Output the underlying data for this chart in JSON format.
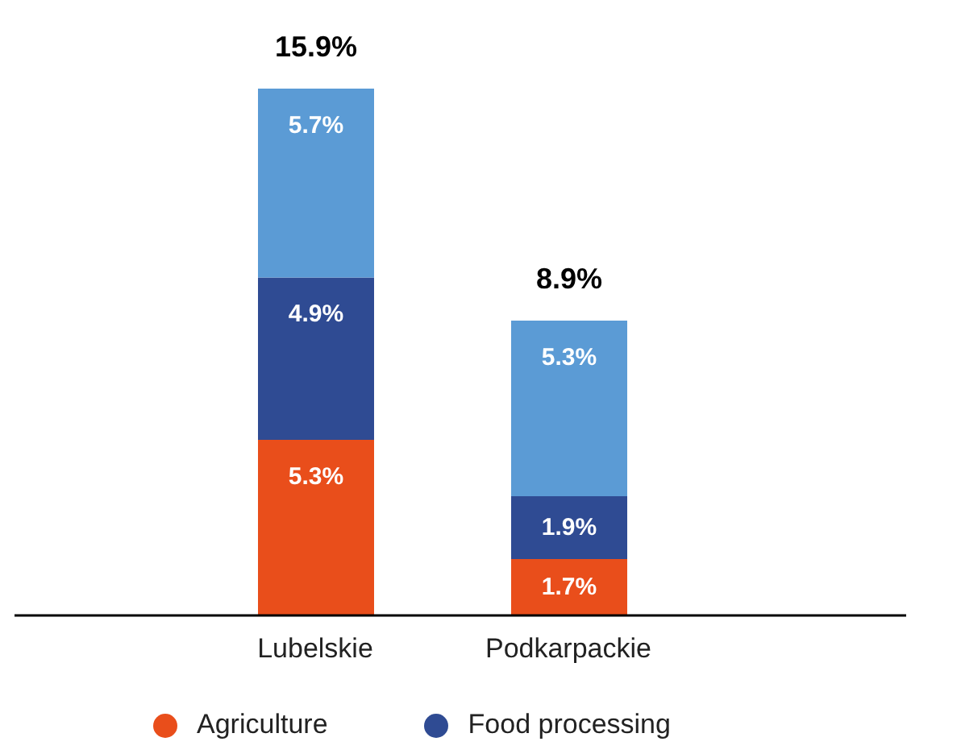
{
  "chart_data": {
    "type": "bar",
    "stacked": true,
    "categories": [
      "Lubelskie",
      "Podkarpackie"
    ],
    "series": [
      {
        "name": "Agriculture",
        "color": "#e94e1b",
        "values": [
          5.3,
          1.7
        ],
        "value_labels": [
          "5.3%",
          "1.7%"
        ]
      },
      {
        "name": "Food processing",
        "color": "#2f4b93",
        "values": [
          4.9,
          1.9
        ],
        "value_labels": [
          "4.9%",
          "1.9%"
        ]
      },
      {
        "color": "#5b9bd5",
        "values": [
          5.7,
          5.3
        ],
        "value_labels": [
          "5.7%",
          "5.3%"
        ]
      }
    ],
    "totals": [
      "15.9%",
      "8.9%"
    ],
    "legend": "bottom"
  }
}
